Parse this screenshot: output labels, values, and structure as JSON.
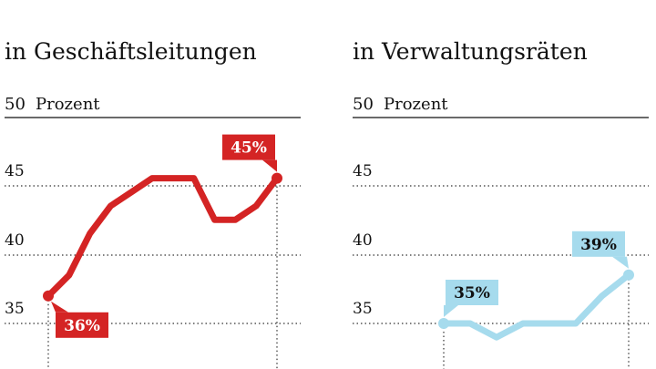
{
  "chart_data": [
    {
      "type": "line",
      "title": "in Geschäftsleitungen",
      "ylabel": "Prozent",
      "ylim": [
        35,
        50
      ],
      "yticks": [
        35,
        40,
        45,
        50
      ],
      "values": [
        36,
        37.5,
        40.5,
        42.5,
        43.5,
        44.5,
        44.5,
        44.5,
        41.5,
        41.5,
        42.5,
        44.5
      ],
      "color": "#d42424",
      "start_label": "36%",
      "end_label": "45%",
      "start_label_color": "#ffffff",
      "end_label_color": "#ffffff"
    },
    {
      "type": "line",
      "title": "in Verwaltungsräten",
      "ylabel": "Prozent",
      "ylim": [
        35,
        50
      ],
      "yticks": [
        35,
        40,
        45,
        50
      ],
      "values": [
        35,
        35,
        34,
        35,
        35,
        35,
        37,
        38.5
      ],
      "color": "#a6dbed",
      "start_label": "35%",
      "end_label": "39%",
      "start_label_color": "#111111",
      "end_label_color": "#111111"
    }
  ]
}
